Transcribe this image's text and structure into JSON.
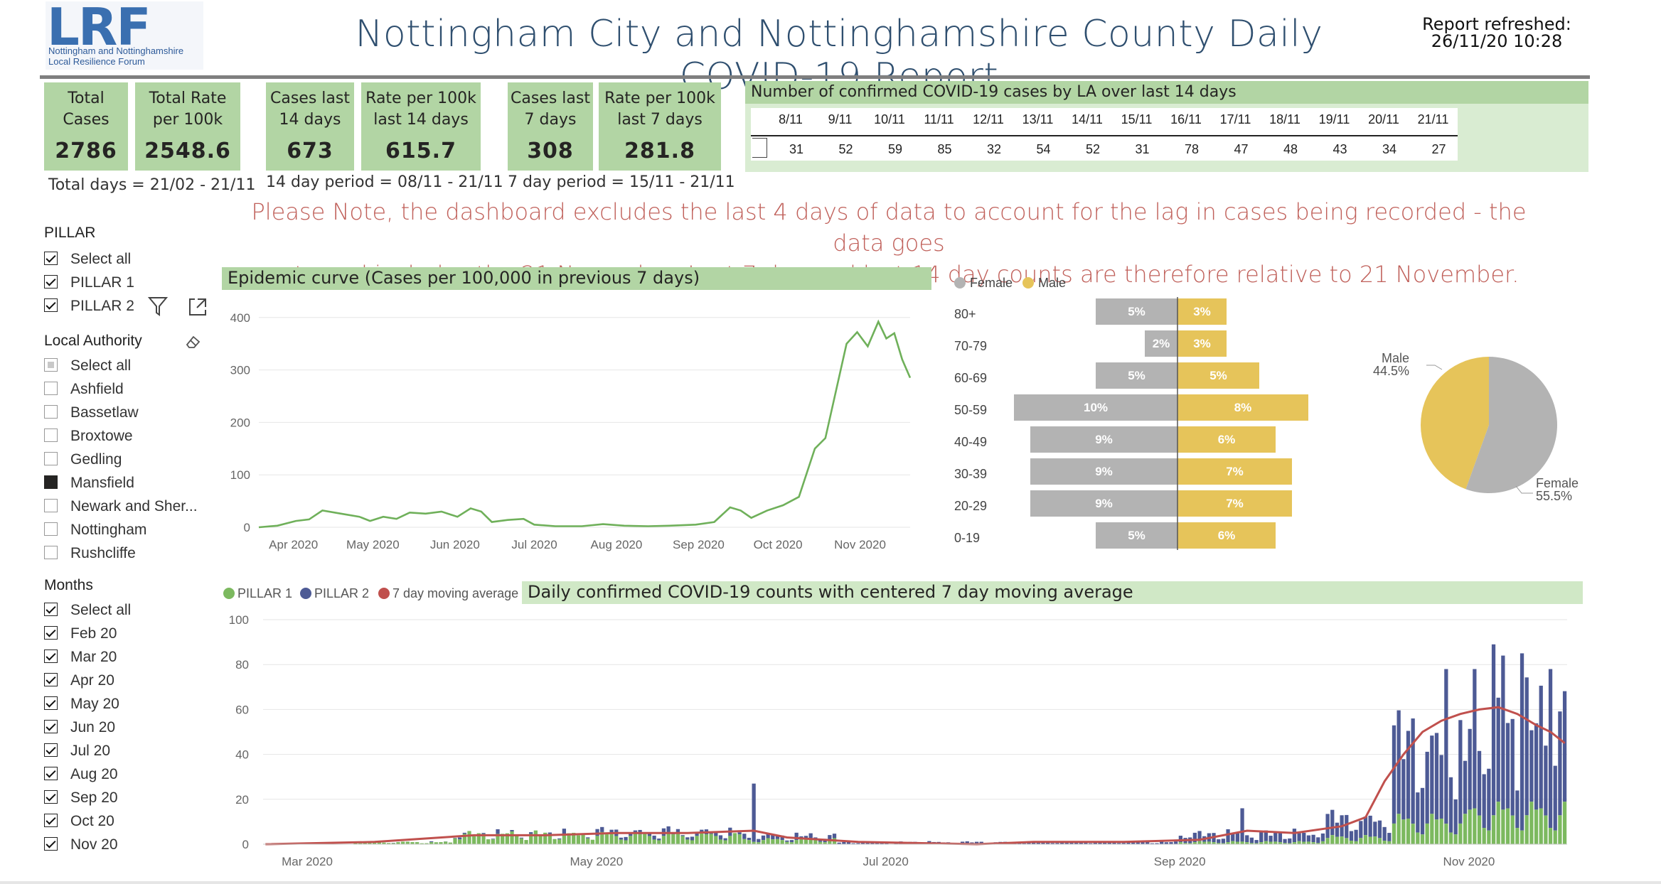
{
  "header": {
    "logo_mark": "LRF",
    "logo_line1": "Nottingham and Nottinghamshire",
    "logo_line2": "Local Resilience Forum",
    "title": "Nottingham City and Nottinghamshire County Daily COVID-19 Report",
    "refresh_label": "Report refreshed:",
    "refresh_time": "26/11/20 10:28"
  },
  "kpis": [
    {
      "line1": "Total",
      "line2": "Cases",
      "value": "2786"
    },
    {
      "line1": "Total Rate",
      "line2": "per 100k",
      "value": "2548.6"
    },
    {
      "line1": "Cases last",
      "line2": "14 days",
      "value": "673"
    },
    {
      "line1": "Rate per 100k",
      "line2": "last 14 days",
      "value": "615.7"
    },
    {
      "line1": "Cases last",
      "line2": "7 days",
      "value": "308"
    },
    {
      "line1": "Rate per 100k",
      "line2": "last 7 days",
      "value": "281.8"
    }
  ],
  "periods": {
    "total": "Total days = 21/02 - 21/11",
    "fourteen": "14 day period = 08/11 - 21/11",
    "seven": "7 day period = 15/11 - 21/11"
  },
  "la_table": {
    "title": "Number of confirmed COVID-19 cases by LA over last 14 days",
    "dates": [
      "8/11",
      "9/11",
      "10/11",
      "11/11",
      "12/11",
      "13/11",
      "14/11",
      "15/11",
      "16/11",
      "17/11",
      "18/11",
      "19/11",
      "20/11",
      "21/11"
    ],
    "values": [
      "31",
      "52",
      "59",
      "85",
      "32",
      "54",
      "52",
      "31",
      "78",
      "47",
      "48",
      "43",
      "34",
      "27"
    ]
  },
  "note": {
    "line1": "Please Note, the dashboard excludes the last 4 days of data to account for the lag in cases being recorded - the data goes",
    "line2": "up to and includes the 21 November. Last 7 day and last 14 day counts are therefore relative to 21 November."
  },
  "pillar_slicer": {
    "title": "PILLAR",
    "items": [
      {
        "label": "Select all",
        "state": "checked"
      },
      {
        "label": "PILLAR 1",
        "state": "checked"
      },
      {
        "label": "PILLAR 2",
        "state": "checked"
      }
    ]
  },
  "la_slicer": {
    "title": "Local Authority",
    "items": [
      {
        "label": "Select all",
        "state": "partial"
      },
      {
        "label": "Ashfield",
        "state": "empty"
      },
      {
        "label": "Bassetlaw",
        "state": "empty"
      },
      {
        "label": "Broxtowe",
        "state": "empty"
      },
      {
        "label": "Gedling",
        "state": "empty"
      },
      {
        "label": "Mansfield",
        "state": "filled"
      },
      {
        "label": "Newark and Sher...",
        "state": "empty"
      },
      {
        "label": "Nottingham",
        "state": "empty"
      },
      {
        "label": "Rushcliffe",
        "state": "empty"
      }
    ]
  },
  "months_slicer": {
    "title": "Months",
    "items": [
      {
        "label": "Select all",
        "state": "checked"
      },
      {
        "label": "Feb 20",
        "state": "checked"
      },
      {
        "label": "Mar 20",
        "state": "checked"
      },
      {
        "label": "Apr 20",
        "state": "checked"
      },
      {
        "label": "May 20",
        "state": "checked"
      },
      {
        "label": "Jun 20",
        "state": "checked"
      },
      {
        "label": "Jul 20",
        "state": "checked"
      },
      {
        "label": "Aug 20",
        "state": "checked"
      },
      {
        "label": "Sep 20",
        "state": "checked"
      },
      {
        "label": "Oct 20",
        "state": "checked"
      },
      {
        "label": "Nov 20",
        "state": "checked"
      }
    ]
  },
  "icons": {
    "filter": "filter-icon",
    "focus": "focus-mode-icon",
    "eraser": "eraser-icon"
  },
  "colors": {
    "header_green": "#b2d5a4",
    "line_green": "#6fb05a",
    "female": "#b3b3b3",
    "male": "#e6c45a",
    "pillar1": "#7cb95f",
    "pillar2": "#4d5a95",
    "moving_avg": "#c0504d",
    "note_red": "#c0605a"
  },
  "chart_data": [
    {
      "type": "line",
      "title": "Epidemic curve (Cases per 100,000 in previous 7 days)",
      "x_tick_labels": [
        "Apr 2020",
        "May 2020",
        "Jun 2020",
        "Jul 2020",
        "Aug 2020",
        "Sep 2020",
        "Oct 2020",
        "Nov 2020"
      ],
      "y_ticks": [
        0,
        100,
        200,
        300,
        400
      ],
      "ylim": [
        0,
        420
      ],
      "x_range": [
        "2020-03-20",
        "2020-11-21"
      ],
      "series": [
        {
          "color": "#6fb05a",
          "points": [
            [
              "2020-03-20",
              0
            ],
            [
              "2020-03-27",
              3
            ],
            [
              "2020-04-03",
              12
            ],
            [
              "2020-04-08",
              15
            ],
            [
              "2020-04-13",
              32
            ],
            [
              "2020-04-20",
              26
            ],
            [
              "2020-04-27",
              20
            ],
            [
              "2020-05-01",
              12
            ],
            [
              "2020-05-06",
              20
            ],
            [
              "2020-05-11",
              16
            ],
            [
              "2020-05-16",
              28
            ],
            [
              "2020-05-22",
              26
            ],
            [
              "2020-05-28",
              30
            ],
            [
              "2020-06-03",
              20
            ],
            [
              "2020-06-08",
              36
            ],
            [
              "2020-06-12",
              30
            ],
            [
              "2020-06-16",
              10
            ],
            [
              "2020-06-22",
              14
            ],
            [
              "2020-06-28",
              16
            ],
            [
              "2020-07-02",
              5
            ],
            [
              "2020-07-10",
              2
            ],
            [
              "2020-07-20",
              2
            ],
            [
              "2020-07-28",
              6
            ],
            [
              "2020-08-05",
              3
            ],
            [
              "2020-08-14",
              2
            ],
            [
              "2020-08-22",
              3
            ],
            [
              "2020-09-01",
              5
            ],
            [
              "2020-09-08",
              10
            ],
            [
              "2020-09-14",
              38
            ],
            [
              "2020-09-18",
              32
            ],
            [
              "2020-09-22",
              18
            ],
            [
              "2020-09-28",
              32
            ],
            [
              "2020-10-04",
              42
            ],
            [
              "2020-10-10",
              58
            ],
            [
              "2020-10-16",
              150
            ],
            [
              "2020-10-20",
              170
            ],
            [
              "2020-10-24",
              260
            ],
            [
              "2020-10-28",
              350
            ],
            [
              "2020-11-01",
              372
            ],
            [
              "2020-11-05",
              345
            ],
            [
              "2020-11-09",
              392
            ],
            [
              "2020-11-12",
              360
            ],
            [
              "2020-11-15",
              370
            ],
            [
              "2020-11-18",
              320
            ],
            [
              "2020-11-21",
              285
            ]
          ]
        }
      ]
    },
    {
      "type": "bar",
      "subtype": "population-pyramid",
      "categories": [
        "80+",
        "70-79",
        "60-69",
        "50-59",
        "40-49",
        "30-39",
        "20-29",
        "0-19"
      ],
      "series": [
        {
          "name": "Female",
          "color": "#b3b3b3",
          "values": [
            5,
            2,
            5,
            10,
            9,
            9,
            9,
            5
          ],
          "labels": [
            "5%",
            "2%",
            "5%",
            "10%",
            "9%",
            "9%",
            "9%",
            "5%"
          ]
        },
        {
          "name": "Male",
          "color": "#e6c45a",
          "values": [
            3,
            3,
            5,
            8,
            6,
            7,
            7,
            6
          ],
          "labels": [
            "3%",
            "3%",
            "5%",
            "8%",
            "6%",
            "7%",
            "7%",
            "6%"
          ]
        }
      ]
    },
    {
      "type": "pie",
      "slices": [
        {
          "name": "Male",
          "value": 44.5,
          "label": "44.5%",
          "color": "#e6c45a"
        },
        {
          "name": "Female",
          "value": 55.5,
          "label": "55.5%",
          "color": "#b3b3b3"
        }
      ]
    },
    {
      "type": "bar",
      "title": "Daily confirmed COVID-19 counts with centered 7 day moving average",
      "legend": [
        "PILLAR 1",
        "PILLAR 2",
        "7 day moving average"
      ],
      "x_tick_labels": [
        "Mar 2020",
        "May 2020",
        "Jul 2020",
        "Sep 2020",
        "Nov 2020"
      ],
      "y_ticks": [
        0,
        20,
        40,
        60,
        80,
        100
      ],
      "ylim": [
        0,
        100
      ],
      "x_range": [
        "2020-02-21",
        "2020-11-21"
      ],
      "pillar1_segments": [
        {
          "from": "2020-02-21",
          "to": "2020-03-10",
          "level": 0
        },
        {
          "from": "2020-03-11",
          "to": "2020-03-31",
          "level": 1
        },
        {
          "from": "2020-04-01",
          "to": "2020-04-30",
          "level": 5
        },
        {
          "from": "2020-05-01",
          "to": "2020-05-31",
          "level": 4
        },
        {
          "from": "2020-06-01",
          "to": "2020-06-20",
          "level": 2
        },
        {
          "from": "2020-06-21",
          "to": "2020-08-31",
          "level": 0
        },
        {
          "from": "2020-09-01",
          "to": "2020-09-30",
          "level": 1
        },
        {
          "from": "2020-10-01",
          "to": "2020-10-15",
          "level": 3
        },
        {
          "from": "2020-10-16",
          "to": "2020-10-31",
          "level": 10
        },
        {
          "from": "2020-11-01",
          "to": "2020-11-21",
          "level": 14
        }
      ],
      "total_segments": [
        {
          "from": "2020-02-21",
          "to": "2020-03-10",
          "level": 0
        },
        {
          "from": "2020-03-11",
          "to": "2020-03-31",
          "level": 1
        },
        {
          "from": "2020-04-01",
          "to": "2020-04-30",
          "level": 5
        },
        {
          "from": "2020-05-01",
          "to": "2020-05-31",
          "level": 6
        },
        {
          "from": "2020-06-01",
          "to": "2020-06-20",
          "level": 4
        },
        {
          "from": "2020-06-21",
          "to": "2020-08-31",
          "level": 1
        },
        {
          "from": "2020-09-01",
          "to": "2020-09-30",
          "level": 5
        },
        {
          "from": "2020-10-01",
          "to": "2020-10-15",
          "level": 12
        },
        {
          "from": "2020-10-16",
          "to": "2020-10-31",
          "level": 45
        },
        {
          "from": "2020-11-01",
          "to": "2020-11-21",
          "level": 58
        }
      ],
      "peaks": [
        [
          "2020-06-03",
          27
        ],
        [
          "2020-09-14",
          16
        ],
        [
          "2020-10-20",
          56
        ],
        [
          "2020-10-27",
          78
        ],
        [
          "2020-11-02",
          78
        ],
        [
          "2020-11-06",
          89
        ],
        [
          "2020-11-08",
          84
        ],
        [
          "2020-11-12",
          85
        ],
        [
          "2020-11-18",
          78
        ]
      ],
      "moving_average": [
        [
          "2020-02-21",
          0
        ],
        [
          "2020-03-15",
          1
        ],
        [
          "2020-04-05",
          4
        ],
        [
          "2020-04-20",
          4
        ],
        [
          "2020-05-05",
          5
        ],
        [
          "2020-05-20",
          5
        ],
        [
          "2020-06-03",
          6
        ],
        [
          "2020-06-10",
          3
        ],
        [
          "2020-06-25",
          1
        ],
        [
          "2020-07-20",
          0
        ],
        [
          "2020-08-01",
          1
        ],
        [
          "2020-08-20",
          1
        ],
        [
          "2020-09-05",
          2
        ],
        [
          "2020-09-15",
          6
        ],
        [
          "2020-09-25",
          5
        ],
        [
          "2020-10-05",
          8
        ],
        [
          "2020-10-10",
          12
        ],
        [
          "2020-10-14",
          28
        ],
        [
          "2020-10-18",
          40
        ],
        [
          "2020-10-22",
          50
        ],
        [
          "2020-10-26",
          55
        ],
        [
          "2020-10-30",
          58
        ],
        [
          "2020-11-03",
          60
        ],
        [
          "2020-11-07",
          61
        ],
        [
          "2020-11-11",
          58
        ],
        [
          "2020-11-15",
          53
        ],
        [
          "2020-11-18",
          50
        ],
        [
          "2020-11-21",
          45
        ]
      ]
    }
  ]
}
